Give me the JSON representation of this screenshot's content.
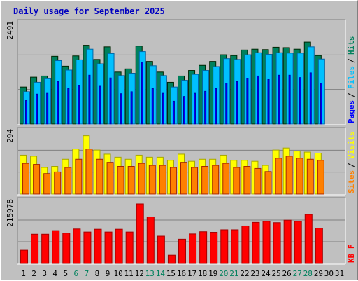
{
  "title": "Daily usage for September 2025",
  "colors": {
    "background": "#c0c0c0",
    "plot_bg": "#c0c0c0",
    "title": "#0000c0",
    "hits": "#00805c",
    "files": "#00c0ff",
    "pages": "#0000ff",
    "visits": "#ffff00",
    "sites": "#ff8000",
    "kbytes": "#ff0000",
    "weekend_day": "#00805c",
    "weekday": "#000000",
    "gridline": "#808080"
  },
  "chart_data": [
    {
      "type": "bar",
      "panel": "hits-files-pages",
      "y_tick_label": "2491",
      "ylim": [
        0,
        2491
      ],
      "legend": [
        "Pages",
        "Files",
        "Hits"
      ],
      "categories": [
        "1",
        "2",
        "3",
        "4",
        "5",
        "6",
        "7",
        "8",
        "9",
        "10",
        "11",
        "12",
        "13",
        "14",
        "15",
        "16",
        "17",
        "18",
        "19",
        "20",
        "21",
        "22",
        "23",
        "24",
        "25",
        "26",
        "27",
        "28",
        "29",
        "30",
        "31"
      ],
      "series": [
        {
          "name": "Hits",
          "values": [
            940,
            1190,
            1220,
            1720,
            1470,
            1730,
            2000,
            1640,
            1960,
            1320,
            1400,
            1980,
            1590,
            1320,
            1060,
            1220,
            1360,
            1490,
            1590,
            1760,
            1740,
            1880,
            1900,
            1890,
            1950,
            1940,
            1900,
            2080,
            1740,
            0,
            0
          ]
        },
        {
          "name": "Files",
          "values": [
            820,
            1060,
            1150,
            1610,
            1370,
            1630,
            1900,
            1530,
            1790,
            1230,
            1290,
            1840,
            1480,
            1230,
            940,
            1110,
            1260,
            1360,
            1460,
            1660,
            1640,
            1760,
            1810,
            1770,
            1810,
            1800,
            1800,
            1960,
            1650,
            0,
            0
          ]
        },
        {
          "name": "Pages",
          "values": [
            600,
            760,
            780,
            1080,
            900,
            980,
            1240,
            960,
            1170,
            770,
            820,
            1570,
            900,
            780,
            580,
            700,
            780,
            830,
            900,
            1040,
            1080,
            1160,
            1220,
            1130,
            1240,
            1240,
            1180,
            1300,
            1040,
            0,
            0
          ]
        }
      ]
    },
    {
      "type": "bar",
      "panel": "visits-sites",
      "y_tick_label": "294",
      "ylim": [
        0,
        294
      ],
      "legend": [
        "Sites",
        "Visits"
      ],
      "categories": [
        "1",
        "2",
        "3",
        "4",
        "5",
        "6",
        "7",
        "8",
        "9",
        "10",
        "11",
        "12",
        "13",
        "14",
        "15",
        "16",
        "17",
        "18",
        "19",
        "20",
        "21",
        "22",
        "23",
        "24",
        "25",
        "26",
        "27",
        "28",
        "29",
        "30",
        "31"
      ],
      "series": [
        {
          "name": "Visits",
          "values": [
            190,
            185,
            130,
            135,
            170,
            220,
            285,
            215,
            195,
            180,
            170,
            190,
            180,
            180,
            165,
            195,
            160,
            170,
            170,
            190,
            165,
            165,
            160,
            140,
            215,
            225,
            210,
            205,
            200,
            0,
            0
          ]
        },
        {
          "name": "Sites",
          "values": [
            150,
            145,
            100,
            108,
            130,
            170,
            220,
            170,
            155,
            135,
            135,
            150,
            140,
            140,
            130,
            155,
            130,
            135,
            140,
            150,
            130,
            135,
            125,
            110,
            175,
            185,
            175,
            170,
            165,
            0,
            0
          ]
        }
      ]
    },
    {
      "type": "bar",
      "panel": "kbytes",
      "y_tick_label": "215978",
      "ylim": [
        0,
        215978
      ],
      "legend": [
        "KB F"
      ],
      "categories": [
        "1",
        "2",
        "3",
        "4",
        "5",
        "6",
        "7",
        "8",
        "9",
        "10",
        "11",
        "12",
        "13",
        "14",
        "15",
        "16",
        "17",
        "18",
        "19",
        "20",
        "21",
        "22",
        "23",
        "24",
        "25",
        "26",
        "27",
        "28",
        "29",
        "30",
        "31"
      ],
      "series": [
        {
          "name": "KB F",
          "values": [
            48000,
            106000,
            106000,
            119000,
            110000,
            125000,
            114000,
            124000,
            114000,
            124000,
            114000,
            215978,
            169000,
            99000,
            30000,
            88000,
            107000,
            115000,
            113000,
            122000,
            122000,
            136000,
            149000,
            153000,
            148000,
            157000,
            153000,
            178000,
            128000,
            0,
            0
          ]
        }
      ]
    }
  ],
  "x_axis": {
    "labels": [
      "1",
      "2",
      "3",
      "4",
      "5",
      "6",
      "7",
      "8",
      "9",
      "10",
      "11",
      "12",
      "13",
      "14",
      "15",
      "16",
      "17",
      "18",
      "19",
      "20",
      "21",
      "22",
      "23",
      "24",
      "25",
      "26",
      "27",
      "28",
      "29",
      "30",
      "31"
    ],
    "weekend_days": [
      "6",
      "7",
      "13",
      "14",
      "20",
      "21",
      "27",
      "28"
    ]
  }
}
